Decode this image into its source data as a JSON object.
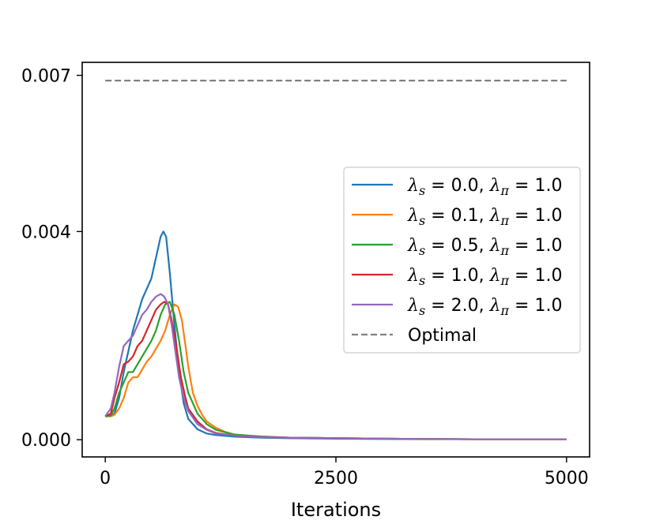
{
  "chart_data": {
    "type": "line",
    "title": "",
    "xlabel": "Iterations",
    "ylabel": "",
    "xlim": [
      -250,
      5250
    ],
    "ylim": [
      -0.00033,
      0.00725
    ],
    "xticks": [
      0,
      2500,
      5000
    ],
    "xtick_labels": [
      "0",
      "2500",
      "5000"
    ],
    "yticks": [
      0.0,
      0.004,
      0.007
    ],
    "ytick_labels": [
      "0.000",
      "0.004",
      "0.007"
    ],
    "grid": false,
    "legend_position": "center-right",
    "series": [
      {
        "name": "λs = 0.0, λπ = 1.0",
        "lambda_s": "0.0",
        "lambda_pi": "1.0",
        "color": "#1f77b4",
        "dash": "solid",
        "x": [
          0,
          60,
          100,
          150,
          200,
          250,
          300,
          350,
          400,
          450,
          500,
          550,
          600,
          630,
          660,
          700,
          750,
          800,
          850,
          900,
          1000,
          1100,
          1200,
          1400,
          1700,
          2000,
          2500,
          3000,
          3500,
          4000,
          4500,
          5000
        ],
        "y": [
          0.00045,
          0.00046,
          0.0005,
          0.0008,
          0.0013,
          0.0017,
          0.0021,
          0.0024,
          0.0027,
          0.0029,
          0.0031,
          0.0035,
          0.0039,
          0.004,
          0.0039,
          0.0032,
          0.0022,
          0.0013,
          0.0007,
          0.0004,
          0.0002,
          0.00012,
          9e-05,
          6e-05,
          4e-05,
          3e-05,
          2e-05,
          1.5e-05,
          1e-05,
          1e-05,
          1e-05,
          1e-05
        ]
      },
      {
        "name": "λs = 0.1, λπ = 1.0",
        "lambda_s": "0.1",
        "lambda_pi": "1.0",
        "color": "#ff7f0e",
        "dash": "solid",
        "x": [
          0,
          60,
          100,
          150,
          200,
          250,
          300,
          350,
          400,
          450,
          500,
          550,
          600,
          650,
          700,
          750,
          790,
          830,
          870,
          900,
          950,
          1000,
          1050,
          1100,
          1200,
          1300,
          1400,
          1600,
          2000,
          2500,
          3000,
          4000,
          5000
        ],
        "y": [
          0.00045,
          0.00045,
          0.00048,
          0.0006,
          0.0008,
          0.0011,
          0.0012,
          0.0012,
          0.00135,
          0.0015,
          0.0016,
          0.00175,
          0.0019,
          0.0021,
          0.0024,
          0.0026,
          0.00255,
          0.0023,
          0.0018,
          0.0014,
          0.0009,
          0.00065,
          0.00048,
          0.00035,
          0.00023,
          0.00015,
          0.0001,
          7e-05,
          4e-05,
          3e-05,
          2e-05,
          1e-05,
          1e-05
        ]
      },
      {
        "name": "λs = 0.5, λπ = 1.0",
        "lambda_s": "0.5",
        "lambda_pi": "1.0",
        "color": "#2ca02c",
        "dash": "solid",
        "x": [
          0,
          60,
          100,
          150,
          200,
          250,
          300,
          350,
          400,
          450,
          500,
          550,
          600,
          650,
          700,
          750,
          800,
          850,
          900,
          1000,
          1100,
          1200,
          1400,
          1700,
          2000,
          2500,
          3000,
          4000,
          5000
        ],
        "y": [
          0.00045,
          0.00046,
          0.0006,
          0.0009,
          0.0011,
          0.0013,
          0.0013,
          0.00145,
          0.0016,
          0.00175,
          0.0019,
          0.0021,
          0.0024,
          0.0026,
          0.00265,
          0.0024,
          0.0019,
          0.0013,
          0.0009,
          0.0005,
          0.0003,
          0.00019,
          0.0001,
          6e-05,
          4e-05,
          3e-05,
          2e-05,
          1e-05,
          1e-05
        ]
      },
      {
        "name": "λs = 1.0, λπ = 1.0",
        "lambda_s": "1.0",
        "lambda_pi": "1.0",
        "color": "#d62728",
        "dash": "solid",
        "x": [
          0,
          60,
          100,
          150,
          200,
          250,
          300,
          350,
          400,
          450,
          500,
          550,
          600,
          640,
          680,
          720,
          770,
          820,
          870,
          900,
          1000,
          1100,
          1200,
          1400,
          1700,
          2000,
          2500,
          3000,
          4000,
          5000
        ],
        "y": [
          0.00045,
          0.0005,
          0.0008,
          0.0011,
          0.00145,
          0.0015,
          0.0016,
          0.0018,
          0.0019,
          0.0021,
          0.0023,
          0.0025,
          0.0026,
          0.00265,
          0.0026,
          0.0023,
          0.0018,
          0.0012,
          0.0008,
          0.0006,
          0.00035,
          0.0002,
          0.00013,
          8e-05,
          5e-05,
          4e-05,
          3e-05,
          2e-05,
          1e-05,
          1e-05
        ]
      },
      {
        "name": "λs = 2.0, λπ = 1.0",
        "lambda_s": "2.0",
        "lambda_pi": "1.0",
        "color": "#9467bd",
        "dash": "solid",
        "x": [
          0,
          60,
          100,
          150,
          200,
          250,
          300,
          350,
          400,
          450,
          500,
          550,
          600,
          640,
          680,
          720,
          760,
          800,
          850,
          900,
          1000,
          1100,
          1200,
          1400,
          1700,
          2000,
          2500,
          3000,
          4000,
          5000
        ],
        "y": [
          0.00045,
          0.0006,
          0.0009,
          0.0014,
          0.0018,
          0.0019,
          0.002,
          0.0022,
          0.0024,
          0.0025,
          0.00265,
          0.00275,
          0.0028,
          0.00275,
          0.0026,
          0.0022,
          0.0017,
          0.0012,
          0.0008,
          0.00055,
          0.0003,
          0.00019,
          0.00012,
          8e-05,
          5e-05,
          4e-05,
          3e-05,
          2e-05,
          1e-05,
          1e-05
        ]
      },
      {
        "name": "Optimal",
        "color": "#808080",
        "dash": "dashed",
        "x": [
          0,
          5000
        ],
        "y": [
          0.0069,
          0.0069
        ]
      }
    ]
  }
}
